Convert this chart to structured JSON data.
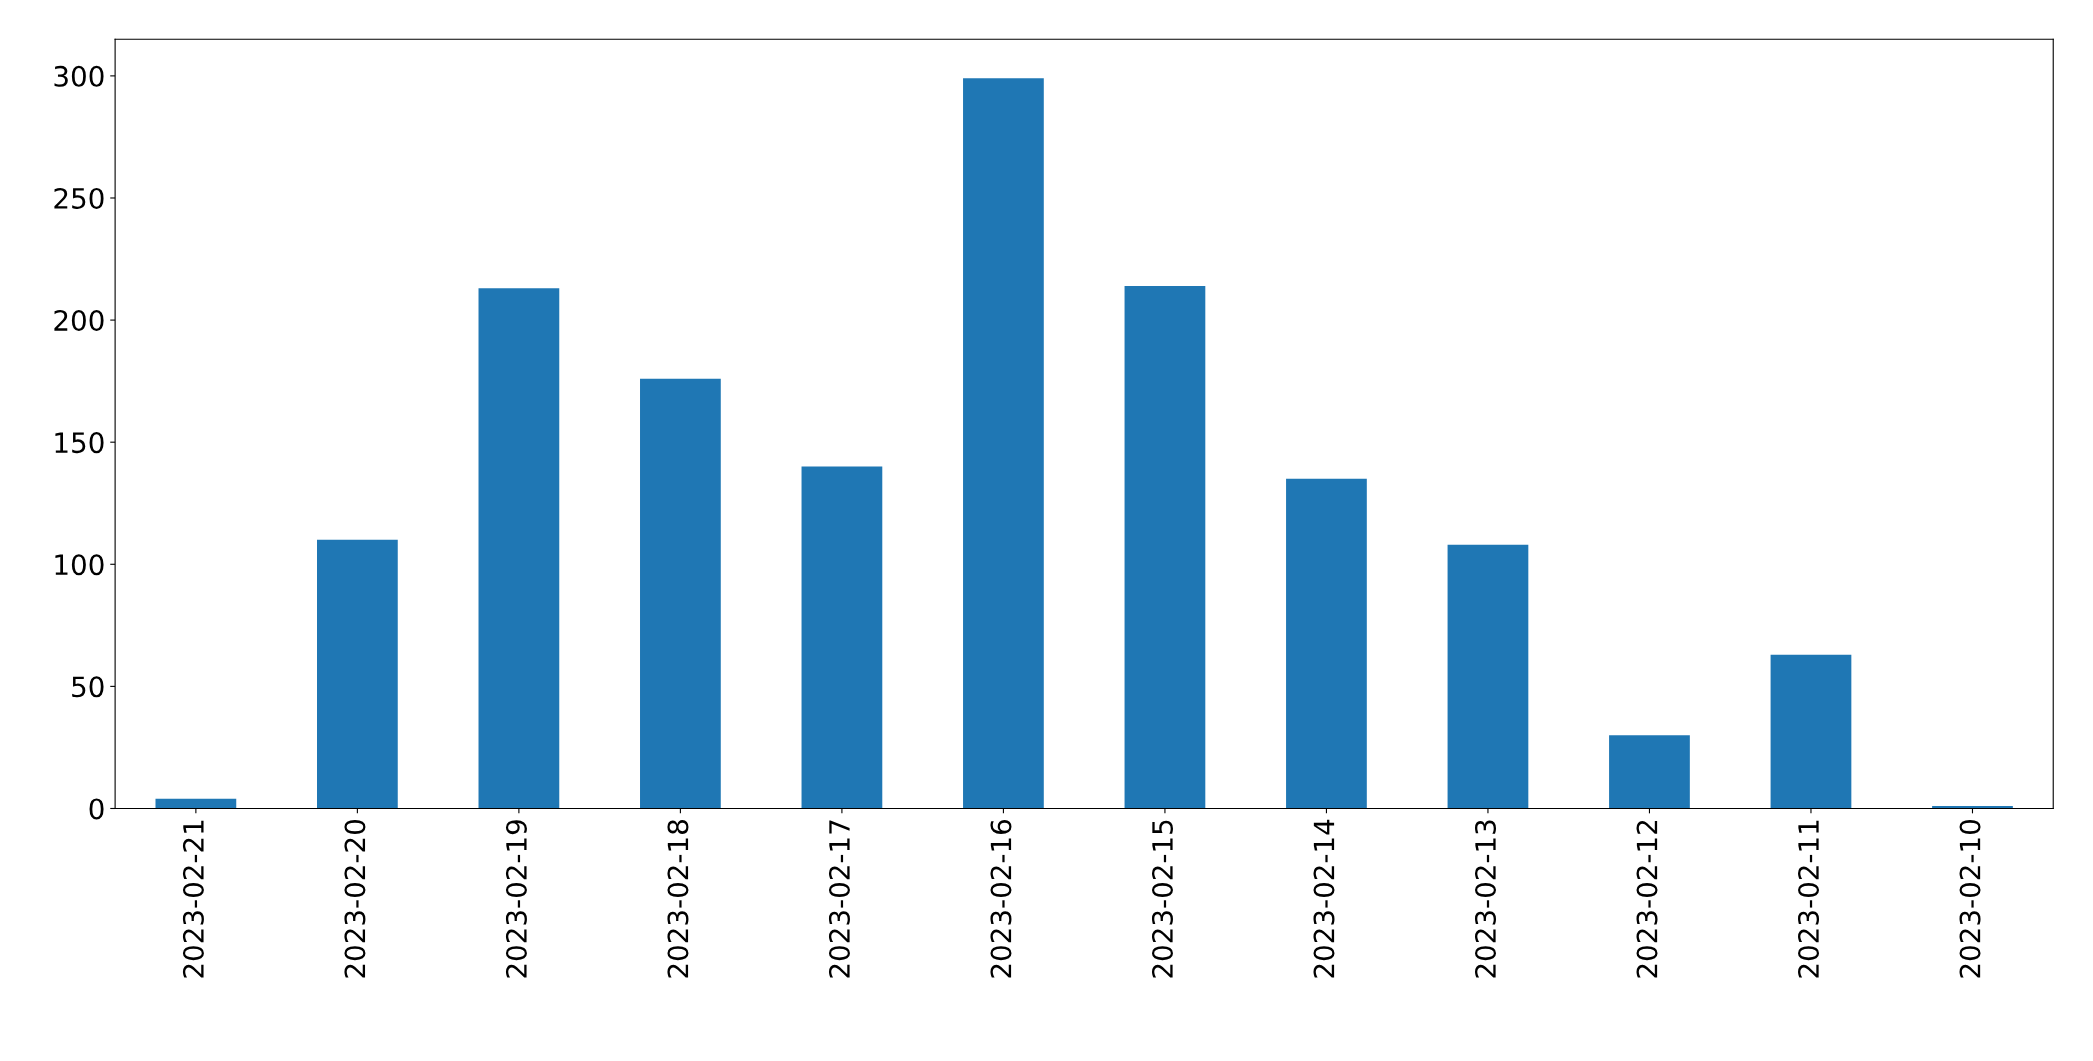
{
  "chart_data": {
    "type": "bar",
    "categories": [
      "2023-02-21",
      "2023-02-20",
      "2023-02-19",
      "2023-02-18",
      "2023-02-17",
      "2023-02-16",
      "2023-02-15",
      "2023-02-14",
      "2023-02-13",
      "2023-02-12",
      "2023-02-11",
      "2023-02-10"
    ],
    "values": [
      4,
      110,
      213,
      176,
      140,
      299,
      214,
      135,
      108,
      30,
      63,
      1
    ],
    "color": "#1f77b4",
    "ylim": [
      0,
      315
    ],
    "yticks": [
      0,
      50,
      100,
      150,
      200,
      250,
      300
    ],
    "grid": false,
    "legend": false
  }
}
